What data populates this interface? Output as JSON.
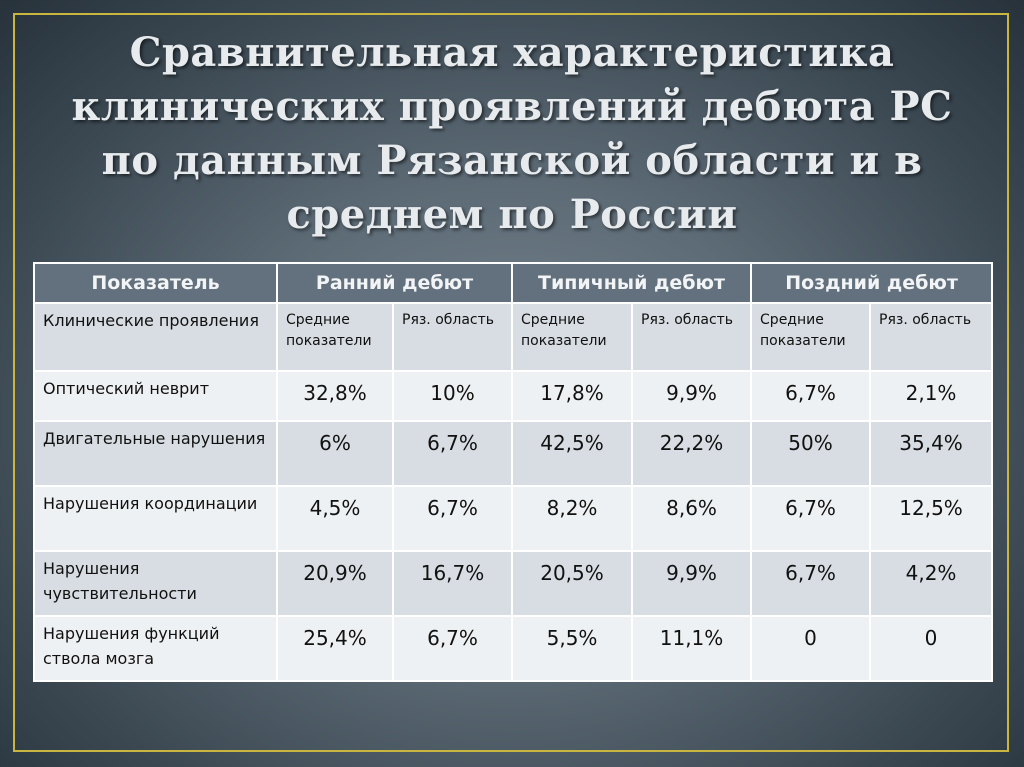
{
  "title": "Сравнительная характеристика клинических проявлений дебюта РС по данным Рязанской области и в среднем по России",
  "table": {
    "headers": [
      "Показатель",
      "Ранний дебют",
      "Типичный дебют",
      "Поздний дебют"
    ],
    "subheader": {
      "label": "Клинические проявления",
      "cols": [
        "Средние показатели",
        "Ряз. область",
        "Средние показатели",
        "Ряз. область",
        "Средние показатели",
        "Ряз. область"
      ]
    },
    "rows": [
      {
        "label": "Оптический неврит",
        "values": [
          "32,8%",
          "10%",
          "17,8%",
          "9,9%",
          "6,7%",
          "2,1%"
        ]
      },
      {
        "label": "Двигательные нарушения",
        "values": [
          "6%",
          "6,7%",
          "42,5%",
          "22,2%",
          "50%",
          "35,4%"
        ]
      },
      {
        "label": "Нарушения координации",
        "values": [
          "4,5%",
          "6,7%",
          "8,2%",
          "8,6%",
          "6,7%",
          "12,5%"
        ]
      },
      {
        "label": "Нарушения чувствительности",
        "values": [
          "20,9%",
          "16,7%",
          "20,5%",
          "9,9%",
          "6,7%",
          "4,2%"
        ]
      },
      {
        "label": "Нарушения функций ствола мозга",
        "values": [
          "25,4%",
          "6,7%",
          "5,5%",
          "11,1%",
          "0",
          "0"
        ]
      }
    ]
  }
}
